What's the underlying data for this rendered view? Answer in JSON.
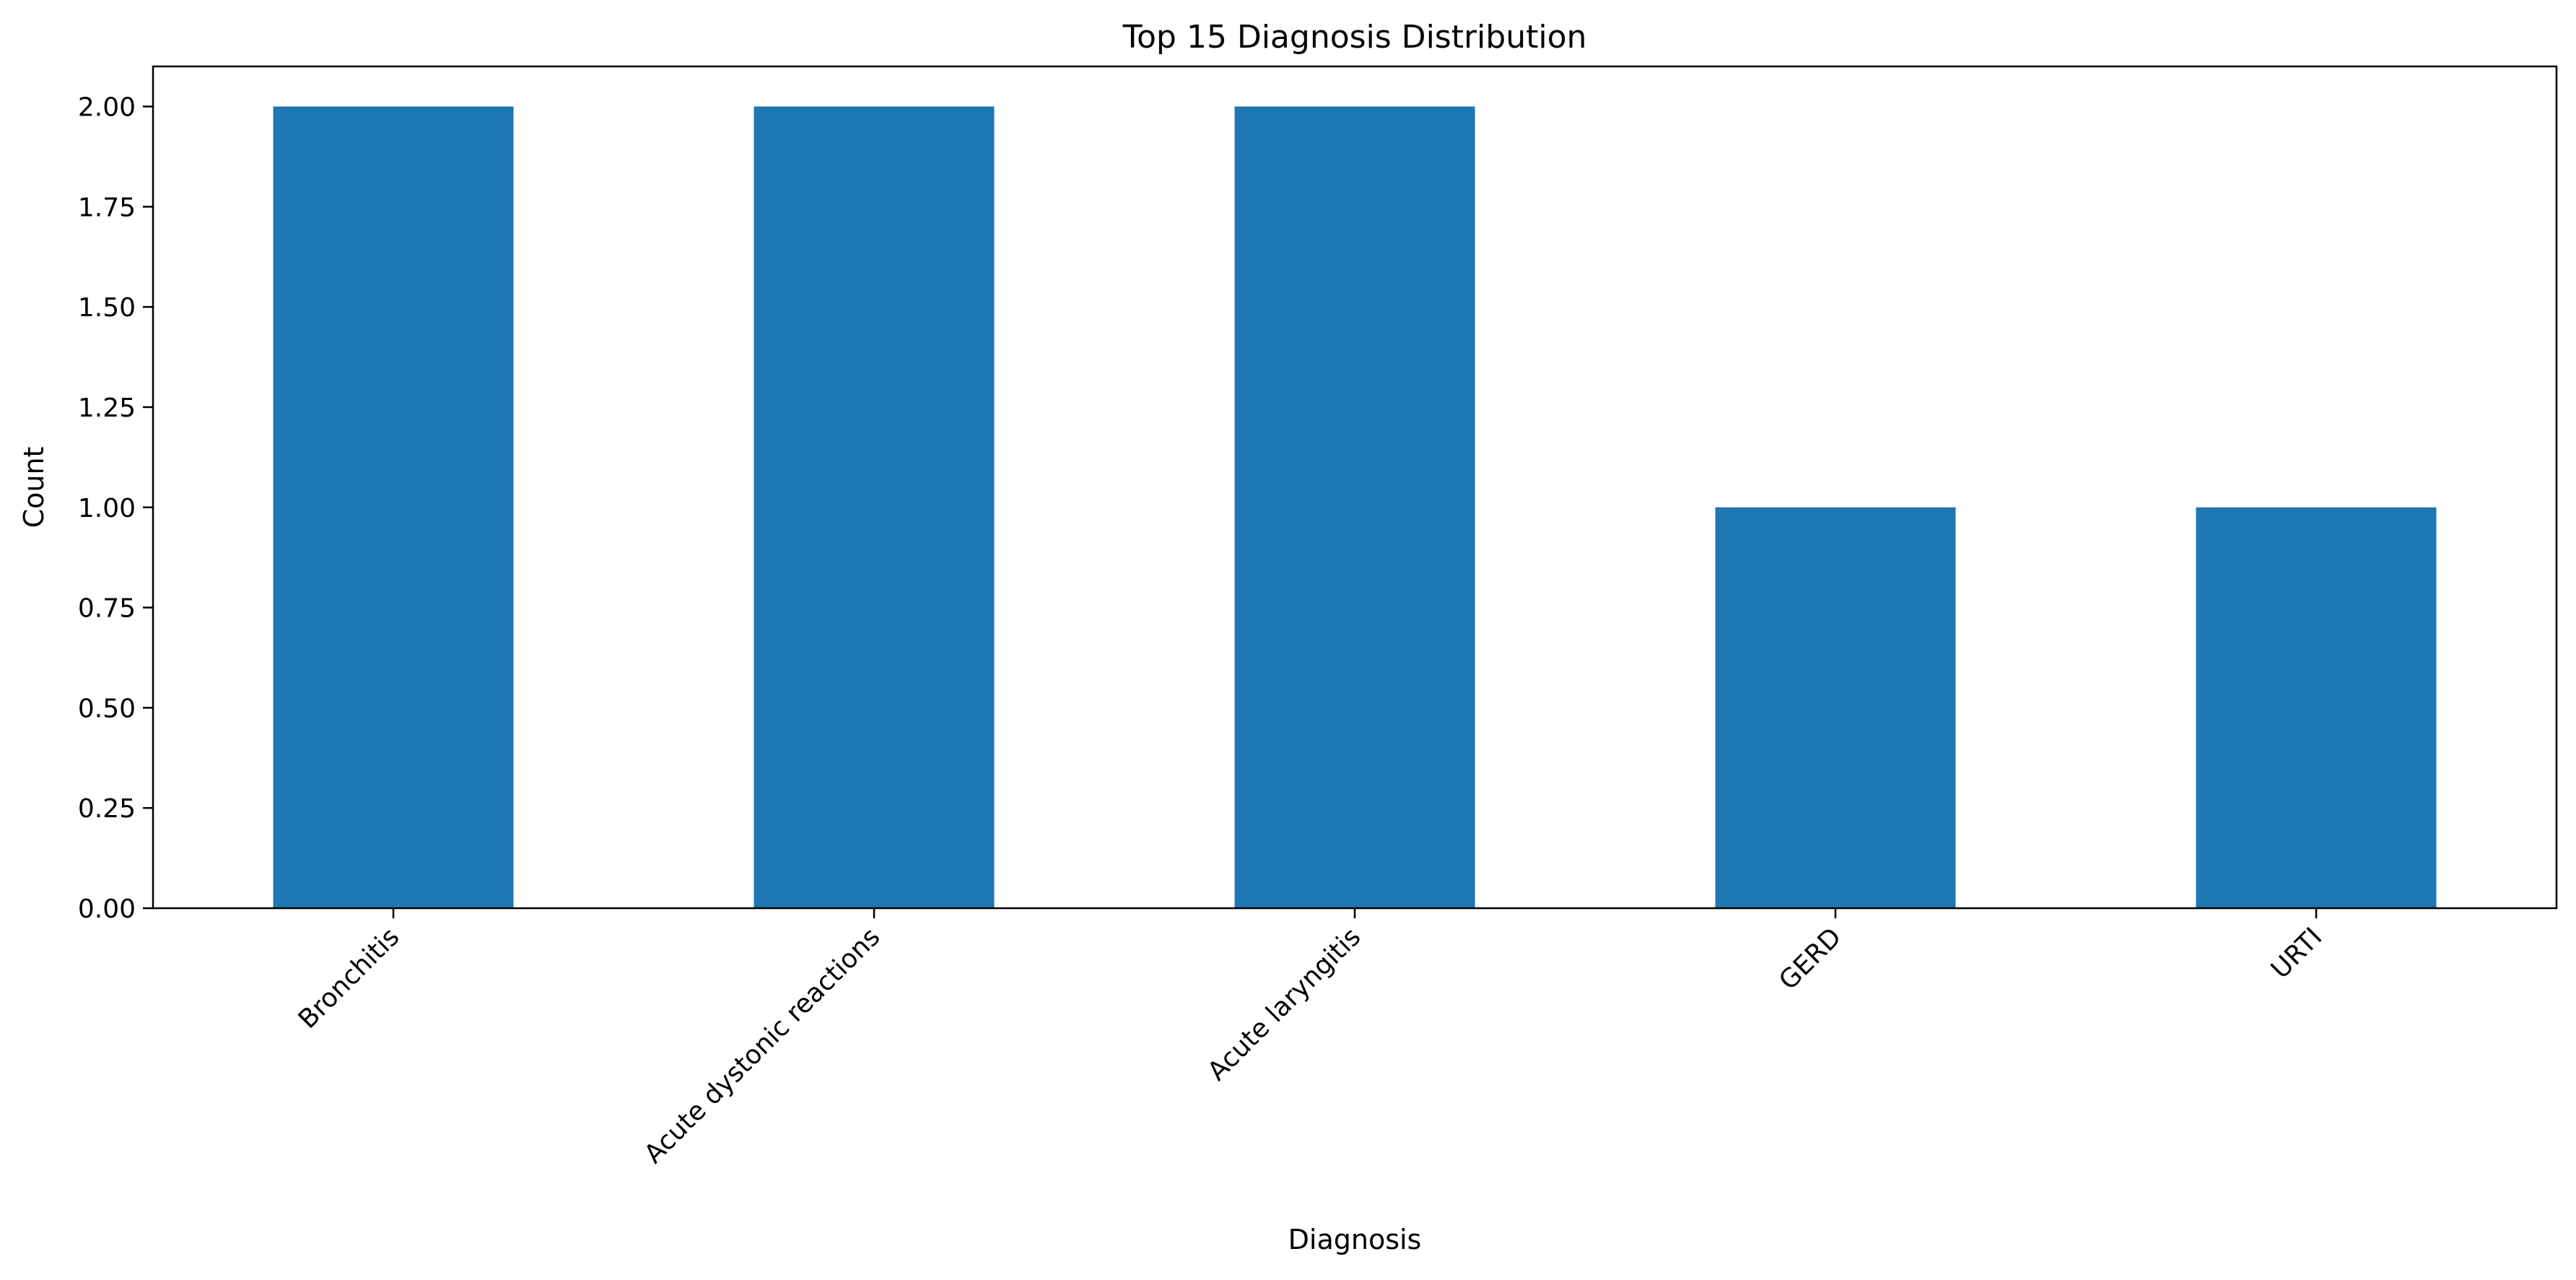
{
  "chart_data": {
    "type": "bar",
    "title": "Top 15 Diagnosis Distribution",
    "xlabel": "Diagnosis",
    "ylabel": "Count",
    "categories": [
      "Bronchitis",
      "Acute dystonic reactions",
      "Acute laryngitis",
      "GERD",
      "URTI"
    ],
    "values": [
      2,
      2,
      2,
      1,
      1
    ],
    "ylim": [
      0,
      2.1
    ],
    "yticks": [
      "0.00",
      "0.25",
      "0.50",
      "0.75",
      "1.00",
      "1.25",
      "1.50",
      "1.75",
      "2.00"
    ],
    "grid": false,
    "legend": "none",
    "bar_color": "#1f77b4"
  }
}
